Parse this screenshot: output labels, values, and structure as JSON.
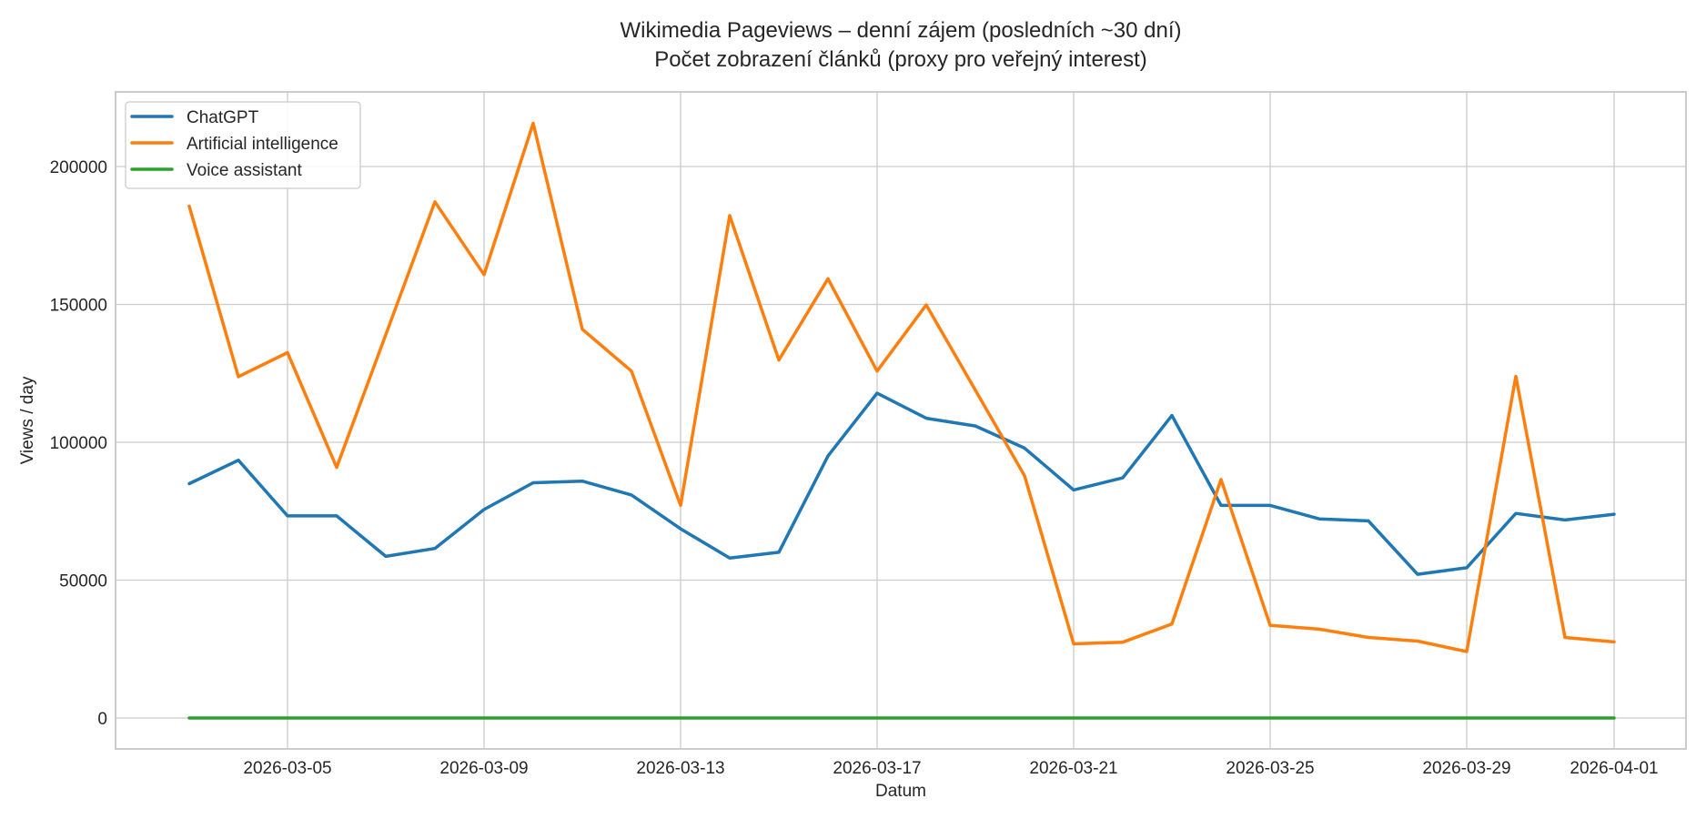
{
  "chart_data": {
    "type": "line",
    "title": "Wikimedia Pageviews – denní zájem (posledních ~30 dní)",
    "subtitle": "Počet zobrazení článků (proxy pro veřejný interest)",
    "xlabel": "Datum",
    "ylabel": "Views / day",
    "ylim": [
      -10000,
      225000
    ],
    "y_ticks": [
      0,
      50000,
      100000,
      150000,
      200000
    ],
    "y_tick_labels": [
      "0",
      "50000",
      "100000",
      "150000",
      "200000"
    ],
    "x_tick_labels": [
      "2026-03-05",
      "2026-03-09",
      "2026-03-13",
      "2026-03-17",
      "2026-03-21",
      "2026-03-25",
      "2026-03-29",
      "2026-04-01"
    ],
    "grid": true,
    "legend_position": "upper left",
    "x": [
      "2026-03-03",
      "2026-03-04",
      "2026-03-05",
      "2026-03-06",
      "2026-03-07",
      "2026-03-08",
      "2026-03-09",
      "2026-03-10",
      "2026-03-11",
      "2026-03-12",
      "2026-03-13",
      "2026-03-14",
      "2026-03-15",
      "2026-03-16",
      "2026-03-17",
      "2026-03-18",
      "2026-03-19",
      "2026-03-20",
      "2026-03-21",
      "2026-03-22",
      "2026-03-23",
      "2026-03-24",
      "2026-03-25",
      "2026-03-26",
      "2026-03-27",
      "2026-03-28",
      "2026-03-29",
      "2026-03-30",
      "2026-03-31",
      "2026-04-01"
    ],
    "series": [
      {
        "name": "ChatGPT",
        "color": "#1f77b4",
        "values": [
          85000,
          93500,
          73300,
          73300,
          58600,
          61500,
          75600,
          85300,
          85900,
          80900,
          68600,
          58000,
          60100,
          95000,
          117800,
          108700,
          105900,
          97900,
          82700,
          87100,
          109700,
          77100,
          77100,
          72200,
          71500,
          52100,
          54500,
          74200,
          71800,
          73900
        ]
      },
      {
        "name": "Artificial intelligence",
        "color": "#ff7f0e",
        "values": [
          185600,
          123800,
          132500,
          90900,
          139000,
          187200,
          160800,
          215700,
          141000,
          125800,
          77100,
          182200,
          129800,
          159300,
          125800,
          149800,
          118900,
          87900,
          26900,
          27500,
          34100,
          86500,
          33600,
          32200,
          29200,
          27900,
          24100,
          123900,
          29200,
          27600
        ]
      },
      {
        "name": "Voice assistant",
        "color": "#2ca02c",
        "values": [
          0,
          0,
          0,
          0,
          0,
          0,
          0,
          0,
          0,
          0,
          0,
          0,
          0,
          0,
          0,
          0,
          0,
          0,
          0,
          0,
          0,
          0,
          0,
          0,
          0,
          0,
          0,
          0,
          0,
          0
        ]
      }
    ]
  }
}
